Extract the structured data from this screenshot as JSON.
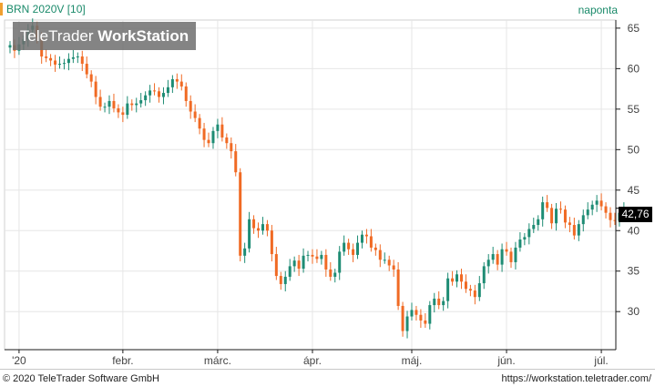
{
  "header": {
    "title": "BRN 2020V [10]",
    "period": "naponta"
  },
  "watermark": {
    "brand_light": "TeleTrader",
    "brand_bold": "WorkStation"
  },
  "footer": {
    "copyright": "© 2020 TeleTrader Software GmbH",
    "url": "https://workstation.teletrader.com/"
  },
  "last_price_label": "42,76",
  "colors": {
    "up": "#1e8c74",
    "down": "#f06a24",
    "grid": "#e6e6e6",
    "accent": "#1a8a6a"
  },
  "chart_data": {
    "type": "candlestick",
    "title": "BRN 2020V [10]",
    "period": "naponta",
    "ylim": [
      25.3,
      66.0
    ],
    "yticks": [
      30,
      35,
      40,
      45,
      50,
      55,
      60,
      65
    ],
    "ytick_labels": [
      "30",
      "35",
      "40",
      "45",
      "50",
      "55",
      "60",
      "65"
    ],
    "xlim": [
      0,
      133
    ],
    "xticks": [
      {
        "label": "'20",
        "index": 2
      },
      {
        "label": "febr.",
        "index": 25
      },
      {
        "label": "márc.",
        "index": 46
      },
      {
        "label": "ápr.",
        "index": 67
      },
      {
        "label": "máj.",
        "index": 89
      },
      {
        "label": "jún.",
        "index": 110
      },
      {
        "label": "júl.",
        "index": 131
      }
    ],
    "last_price": 42.76,
    "closes": [
      62.9,
      62.2,
      63.0,
      63.6,
      64.8,
      65.3,
      63.8,
      61.5,
      61.3,
      61.0,
      60.5,
      60.6,
      60.7,
      61.2,
      61.4,
      61.5,
      60.6,
      59.3,
      58.4,
      56.5,
      55.3,
      55.3,
      56.0,
      55.1,
      54.6,
      54.3,
      55.7,
      55.5,
      55.7,
      56.1,
      56.7,
      57.3,
      57.2,
      56.5,
      57.0,
      57.7,
      58.7,
      58.4,
      57.8,
      56.0,
      54.7,
      53.9,
      52.6,
      51.2,
      50.8,
      52.3,
      53.1,
      51.5,
      50.8,
      49.8,
      47.2,
      36.9,
      37.8,
      41.4,
      40.3,
      40.0,
      40.8,
      40.0,
      37.1,
      34.4,
      33.4,
      34.3,
      35.6,
      36.3,
      35.3,
      36.9,
      37.0,
      36.8,
      36.5,
      37.0,
      35.2,
      34.3,
      34.8,
      37.4,
      38.5,
      37.7,
      37.0,
      38.5,
      39.5,
      39.3,
      37.9,
      37.6,
      36.4,
      36.4,
      35.7,
      35.2,
      30.7,
      27.6,
      29.4,
      30.2,
      29.6,
      28.9,
      28.5,
      30.8,
      31.6,
      30.8,
      31.3,
      34.1,
      33.7,
      34.6,
      33.7,
      32.8,
      32.6,
      31.8,
      33.5,
      35.6,
      36.4,
      37.1,
      35.8,
      37.7,
      37.4,
      36.1,
      37.9,
      38.9,
      39.2,
      40.2,
      40.7,
      41.4,
      43.5,
      42.8,
      40.9,
      42.7,
      42.6,
      41.0,
      40.7,
      39.4,
      40.8,
      41.9,
      42.6,
      43.2,
      43.7,
      43.0,
      42.2,
      41.3,
      41.2,
      42.2,
      42.8
    ]
  }
}
